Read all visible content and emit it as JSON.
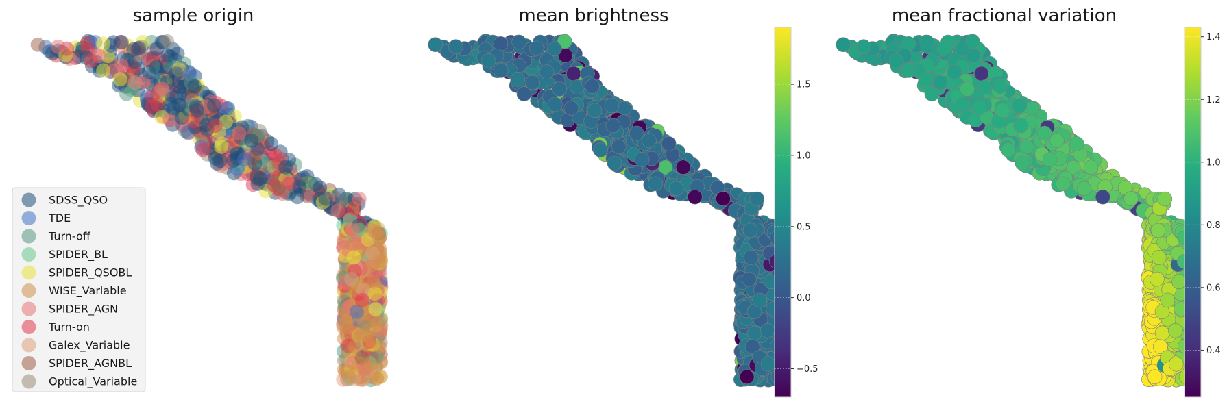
{
  "chart_data": [
    {
      "type": "scatter",
      "title": "sample origin",
      "legend_position": "lower-left",
      "grid": false,
      "series": [
        {
          "name": "SDSS_QSO",
          "color": "#1f4e79"
        },
        {
          "name": "TDE",
          "color": "#4472c4"
        },
        {
          "name": "Turn-off",
          "color": "#5a9882"
        },
        {
          "name": "SPIDER_BL",
          "color": "#66c98c"
        },
        {
          "name": "SPIDER_QSOBL",
          "color": "#e8e13a"
        },
        {
          "name": "WISE_Variable",
          "color": "#d08f4e"
        },
        {
          "name": "SPIDER_AGN",
          "color": "#e87474"
        },
        {
          "name": "Turn-on",
          "color": "#e03a4e"
        },
        {
          "name": "Galex_Variable",
          "color": "#dca37e"
        },
        {
          "name": "SPIDER_AGNBL",
          "color": "#9c5f48"
        },
        {
          "name": "Optical_Variable",
          "color": "#9a8c78"
        }
      ]
    },
    {
      "type": "scatter",
      "title": "mean brightness",
      "colormap": "viridis",
      "colorbar": {
        "min": -0.7,
        "max": 1.9,
        "ticks": [
          -0.5,
          0.0,
          0.5,
          1.0,
          1.5
        ],
        "tick_labels": [
          "−0.5",
          "0.0",
          "0.5",
          "1.0",
          "1.5"
        ]
      }
    },
    {
      "type": "scatter",
      "title": "mean fractional variation",
      "colormap": "viridis",
      "colorbar": {
        "min": 0.25,
        "max": 1.43,
        "ticks": [
          0.4,
          0.6,
          0.8,
          1.0,
          1.2,
          1.4
        ],
        "tick_labels": [
          "0.4",
          "0.6",
          "0.8",
          "1.0",
          "1.2",
          "1.4"
        ]
      }
    }
  ]
}
